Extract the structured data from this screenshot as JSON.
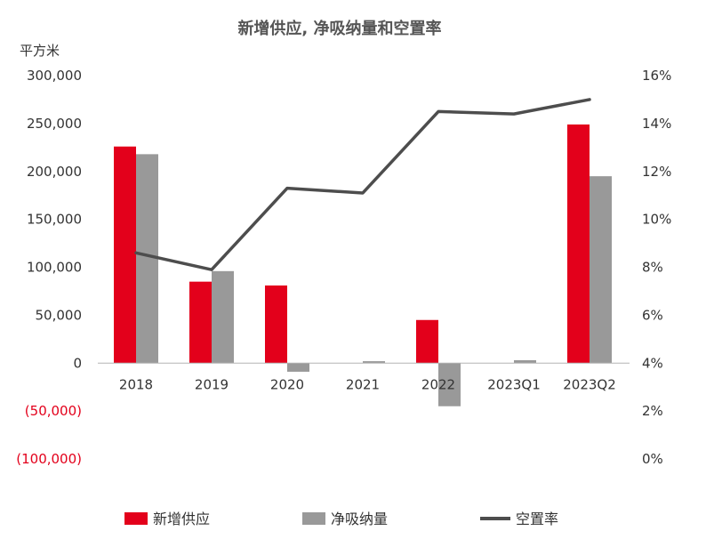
{
  "chart_data": {
    "type": "bar",
    "title": "新增供应, 净吸纳量和空置率",
    "unit_label": "平方米",
    "categories": [
      "2018",
      "2019",
      "2020",
      "2021",
      "2022",
      "2023Q1",
      "2023Q2"
    ],
    "series": [
      {
        "name": "新增供应",
        "type": "bar",
        "axis": "left",
        "color": "#e3001b",
        "values": [
          226000,
          85000,
          81000,
          0,
          45000,
          0,
          249000
        ]
      },
      {
        "name": "净吸纳量",
        "type": "bar",
        "axis": "left",
        "color": "#999999",
        "values": [
          218000,
          96000,
          -9000,
          2000,
          -45000,
          3000,
          195000
        ]
      },
      {
        "name": "空置率",
        "type": "line",
        "axis": "right",
        "color": "#4d4d4d",
        "values": [
          8.6,
          7.9,
          11.3,
          11.1,
          14.5,
          14.4,
          15.0
        ]
      }
    ],
    "left_axis": {
      "ylim": [
        -100000,
        300000
      ],
      "ticks": [
        300000,
        250000,
        200000,
        150000,
        100000,
        50000,
        0,
        -50000,
        -100000
      ],
      "tick_labels": [
        "300,000",
        "250,000",
        "200,000",
        "150,000",
        "100,000",
        "50,000",
        "0",
        "(50,000)",
        "(100,000)"
      ]
    },
    "right_axis": {
      "ylim": [
        0,
        16
      ],
      "ticks": [
        16,
        14,
        12,
        10,
        8,
        6,
        4,
        2,
        0
      ],
      "tick_labels": [
        "16%",
        "14%",
        "12%",
        "10%",
        "8%",
        "6%",
        "4%",
        "2%",
        "0%"
      ]
    },
    "grid": false,
    "legend_position": "bottom"
  }
}
